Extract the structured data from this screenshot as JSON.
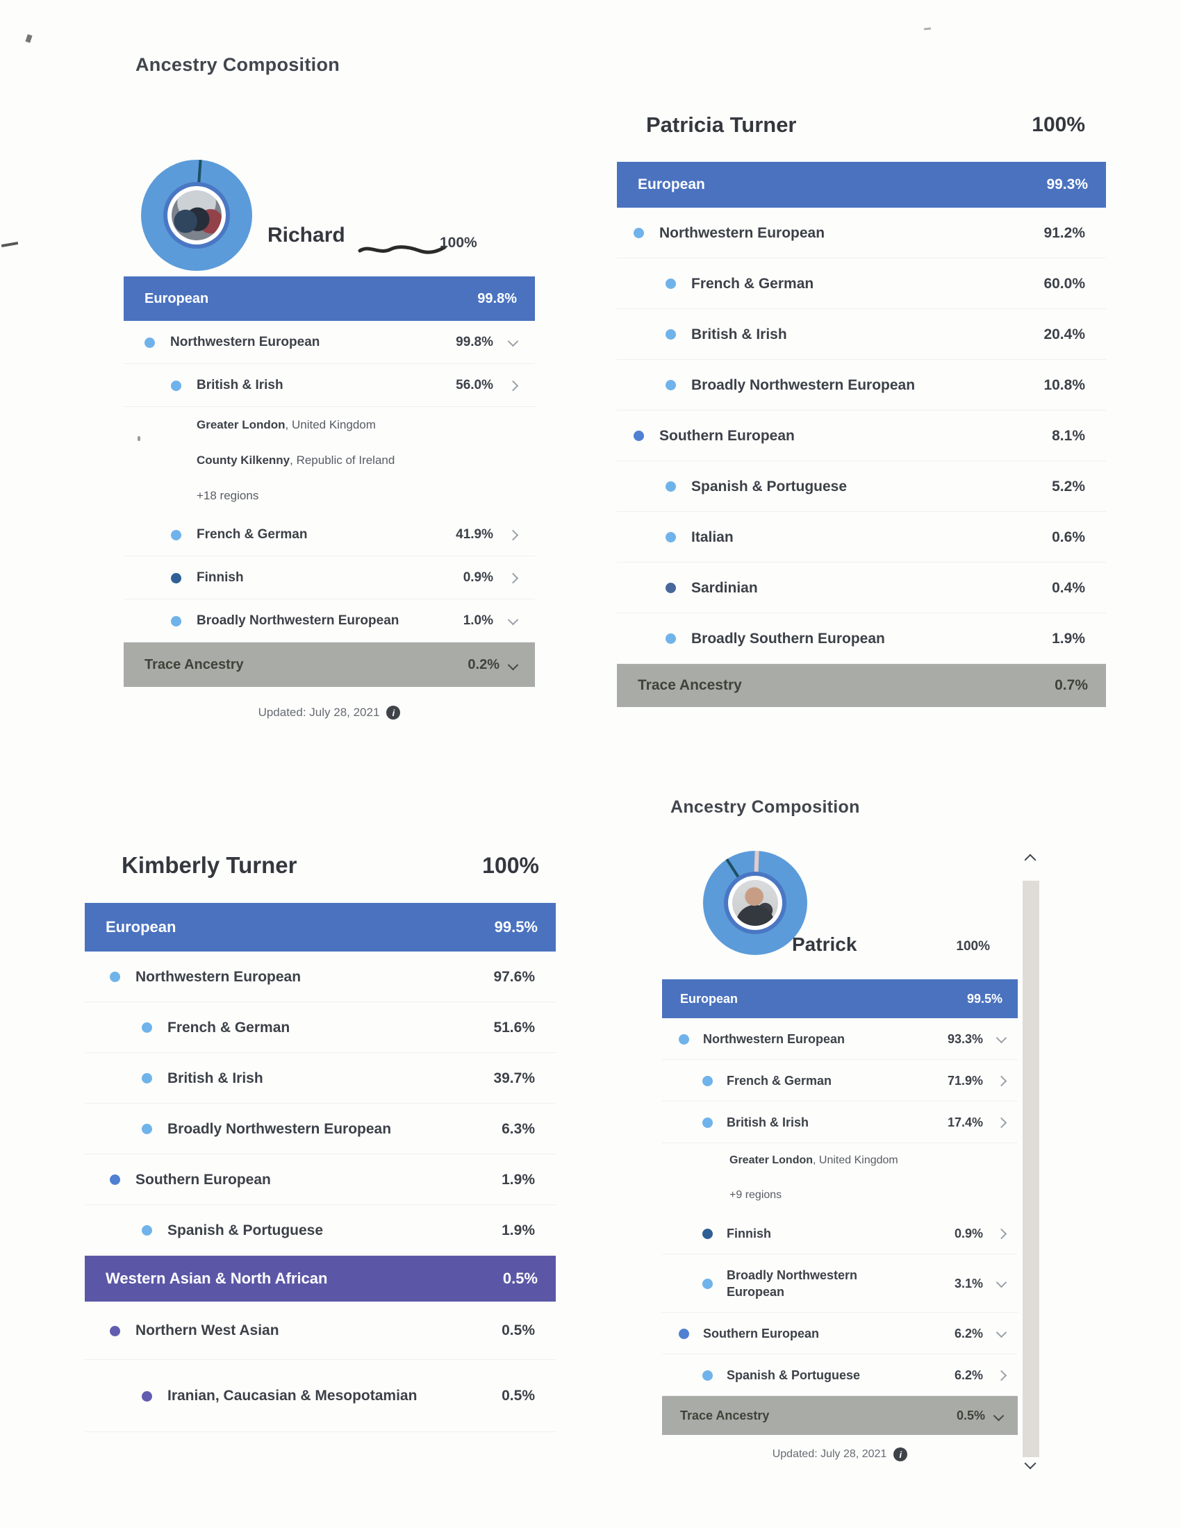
{
  "colors": {
    "band_blue": "#4a72bf",
    "band_gray": "#a9aba6",
    "band_purple": "#5b57a6",
    "dot_light": "#6fb3ea",
    "dot_navy": "#2e6095",
    "dot_mid": "#4f80d2",
    "dot_dark": "#48689c",
    "dot_purple": "#625dae",
    "donut_ring": "#5b9bd9",
    "donut_inner": "#4a77c4",
    "text_dark": "#3c4148"
  },
  "icons": {
    "info_glyph": "i"
  },
  "panels": [
    {
      "heading": "Ancestry Composition",
      "person": "Richard",
      "total": "100%",
      "updated": "Updated: July 28, 2021",
      "rows": [
        {
          "type": "band",
          "color": "blue",
          "label": "European",
          "value": "99.8%"
        },
        {
          "type": "row",
          "level": 1,
          "dot": "light",
          "label": "Northwestern European",
          "value": "99.8%",
          "chevron": "down"
        },
        {
          "type": "row",
          "level": 2,
          "dot": "light",
          "label": "British & Irish",
          "value": "56.0%",
          "chevron": "right"
        },
        {
          "type": "sub",
          "bold": "Greater London",
          "rest": ", United Kingdom"
        },
        {
          "type": "sub",
          "bold": "County Kilkenny",
          "rest": ", Republic of Ireland"
        },
        {
          "type": "sub",
          "rest": "+18 regions"
        },
        {
          "type": "row",
          "level": 2,
          "dot": "light",
          "label": "French & German",
          "value": "41.9%",
          "chevron": "right"
        },
        {
          "type": "row",
          "level": 2,
          "dot": "navy",
          "label": "Finnish",
          "value": "0.9%",
          "chevron": "right"
        },
        {
          "type": "row",
          "level": 2,
          "dot": "light",
          "label": "Broadly Northwestern European",
          "value": "1.0%",
          "chevron": "down"
        },
        {
          "type": "band",
          "color": "gray",
          "label": "Trace Ancestry",
          "value": "0.2%",
          "chevron": "down"
        }
      ]
    },
    {
      "person": "Patricia Turner",
      "total": "100%",
      "rows": [
        {
          "type": "band",
          "color": "blue",
          "label": "European",
          "value": "99.3%"
        },
        {
          "type": "row",
          "level": 1,
          "dot": "light",
          "label": "Northwestern European",
          "value": "91.2%"
        },
        {
          "type": "row",
          "level": 2,
          "dot": "light",
          "label": "French & German",
          "value": "60.0%"
        },
        {
          "type": "row",
          "level": 2,
          "dot": "light",
          "label": "British & Irish",
          "value": "20.4%"
        },
        {
          "type": "row",
          "level": 2,
          "dot": "light",
          "label": "Broadly Northwestern European",
          "value": "10.8%"
        },
        {
          "type": "row",
          "level": 1,
          "dot": "mid",
          "label": "Southern European",
          "value": "8.1%"
        },
        {
          "type": "row",
          "level": 2,
          "dot": "light",
          "label": "Spanish & Portuguese",
          "value": "5.2%"
        },
        {
          "type": "row",
          "level": 2,
          "dot": "light",
          "label": "Italian",
          "value": "0.6%"
        },
        {
          "type": "row",
          "level": 2,
          "dot": "dark",
          "label": "Sardinian",
          "value": "0.4%"
        },
        {
          "type": "row",
          "level": 2,
          "dot": "light",
          "label": "Broadly Southern European",
          "value": "1.9%"
        },
        {
          "type": "band",
          "color": "gray",
          "label": "Trace Ancestry",
          "value": "0.7%"
        }
      ]
    },
    {
      "person": "Kimberly Turner",
      "total": "100%",
      "rows": [
        {
          "type": "band",
          "color": "blue",
          "label": "European",
          "value": "99.5%"
        },
        {
          "type": "row",
          "level": 1,
          "dot": "light",
          "label": "Northwestern European",
          "value": "97.6%"
        },
        {
          "type": "row",
          "level": 2,
          "dot": "light",
          "label": "French & German",
          "value": "51.6%"
        },
        {
          "type": "row",
          "level": 2,
          "dot": "light",
          "label": "British & Irish",
          "value": "39.7%"
        },
        {
          "type": "row",
          "level": 2,
          "dot": "light",
          "label": "Broadly Northwestern European",
          "value": "6.3%"
        },
        {
          "type": "row",
          "level": 1,
          "dot": "mid",
          "label": "Southern European",
          "value": "1.9%"
        },
        {
          "type": "row",
          "level": 2,
          "dot": "light",
          "label": "Spanish & Portuguese",
          "value": "1.9%"
        },
        {
          "type": "band",
          "color": "purple",
          "label": "Western Asian & North African",
          "value": "0.5%"
        },
        {
          "type": "row",
          "level": 1,
          "dot": "purple",
          "label": "Northern West Asian",
          "value": "0.5%"
        },
        {
          "type": "row",
          "level": 2,
          "dot": "purple",
          "label": "Iranian, Caucasian & Mesopotamian",
          "value": "0.5%",
          "wrap": true
        }
      ]
    },
    {
      "heading": "Ancestry Composition",
      "person": "Patrick",
      "total": "100%",
      "updated": "Updated: July 28, 2021",
      "rows": [
        {
          "type": "band",
          "color": "blue",
          "label": "European",
          "value": "99.5%"
        },
        {
          "type": "row",
          "level": 1,
          "dot": "light",
          "label": "Northwestern European",
          "value": "93.3%",
          "chevron": "down"
        },
        {
          "type": "row",
          "level": 2,
          "dot": "light",
          "label": "French & German",
          "value": "71.9%",
          "chevron": "right"
        },
        {
          "type": "row",
          "level": 2,
          "dot": "light",
          "label": "British & Irish",
          "value": "17.4%",
          "chevron": "right"
        },
        {
          "type": "sub",
          "bold": "Greater London",
          "rest": ", United Kingdom"
        },
        {
          "type": "sub",
          "rest": "+9 regions"
        },
        {
          "type": "row",
          "level": 2,
          "dot": "navy",
          "label": "Finnish",
          "value": "0.9%",
          "chevron": "right"
        },
        {
          "type": "row",
          "level": 2,
          "dot": "light",
          "label": "Broadly Northwestern European",
          "value": "3.1%",
          "chevron": "down",
          "wrap": true
        },
        {
          "type": "row",
          "level": 1,
          "dot": "mid",
          "label": "Southern European",
          "value": "6.2%",
          "chevron": "down"
        },
        {
          "type": "row",
          "level": 2,
          "dot": "light",
          "label": "Spanish & Portuguese",
          "value": "6.2%",
          "chevron": "right"
        },
        {
          "type": "band",
          "color": "gray",
          "label": "Trace Ancestry",
          "value": "0.5%",
          "chevron": "down"
        }
      ]
    }
  ]
}
